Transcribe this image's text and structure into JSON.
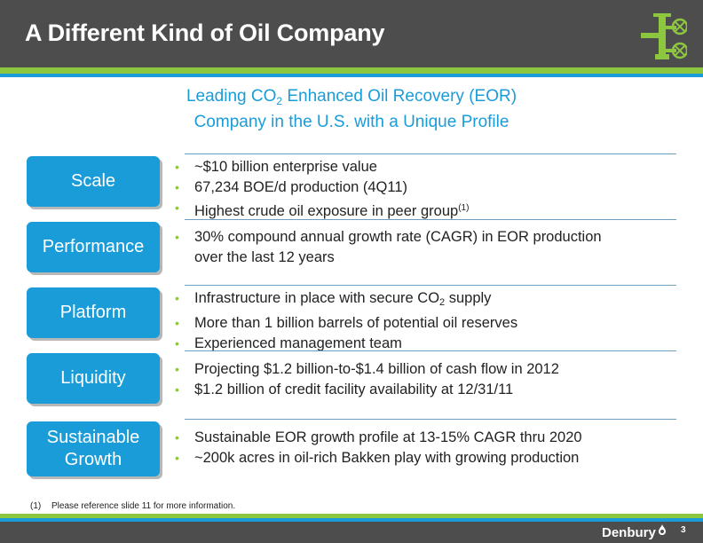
{
  "header": {
    "title": "A Different Kind of Oil Company",
    "logo_icon": "pumpjack-valve-icon"
  },
  "subtitle": {
    "line1_prefix": "Leading CO",
    "line1_sub": "2",
    "line1_suffix": " Enhanced Oil Recovery (EOR)",
    "line2": "Company in the U.S. with a Unique Profile"
  },
  "rows": [
    {
      "label": "Scale",
      "bullets": [
        {
          "text": "~$10 billion enterprise value"
        },
        {
          "text": "67,234 BOE/d production (4Q11)"
        },
        {
          "text": "Highest crude oil exposure in peer group",
          "sup": "(1)"
        }
      ]
    },
    {
      "label": "Performance",
      "bullets": [
        {
          "text": "30% compound annual growth rate (CAGR) in EOR production",
          "text2": "over the last 12 years"
        }
      ]
    },
    {
      "label": "Platform",
      "bullets": [
        {
          "text": "Infrastructure in place with secure CO",
          "sub": "2",
          "after": " supply"
        },
        {
          "text": "More than 1 billion barrels of potential oil reserves"
        },
        {
          "text": "Experienced management team"
        }
      ]
    },
    {
      "label": "Liquidity",
      "bullets": [
        {
          "text": "Projecting $1.2 billion-to-$1.4 billion of cash flow in 2012"
        },
        {
          "text": "$1.2 billion of credit facility availability at 12/31/11"
        }
      ]
    },
    {
      "label1": "Sustainable",
      "label2": "Growth",
      "bullets": [
        {
          "text": "Sustainable EOR growth profile at 13-15% CAGR thru 2020"
        },
        {
          "text": "~200k acres in oil-rich Bakken play with growing production"
        }
      ]
    }
  ],
  "footnote": {
    "num": "(1)",
    "text": "Please reference slide 11 for more information."
  },
  "footer": {
    "brand": "Denbury",
    "page": "3"
  },
  "colors": {
    "header_bg": "#4d4d4d",
    "accent_blue": "#1a9cd8",
    "accent_green": "#8dc63f"
  }
}
